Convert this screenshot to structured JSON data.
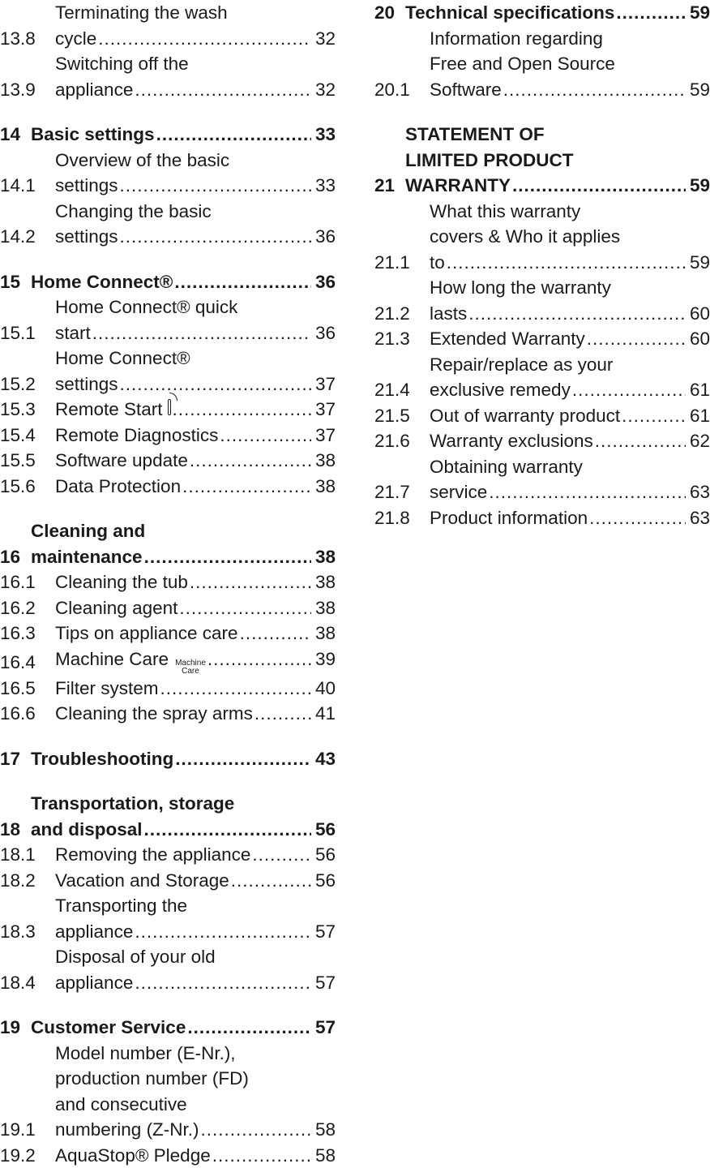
{
  "left": [
    {
      "type": "sub",
      "num": "13.8",
      "lines": [
        "Terminating the wash",
        "cycle"
      ],
      "page": "32"
    },
    {
      "type": "sub",
      "num": "13.9",
      "lines": [
        "Switching off the",
        "appliance"
      ],
      "page": "32"
    },
    {
      "type": "chapter",
      "num": "14",
      "lines": [
        "Basic settings"
      ],
      "page": "33"
    },
    {
      "type": "sub",
      "num": "14.1",
      "lines": [
        "Overview of the basic",
        "settings"
      ],
      "page": "33"
    },
    {
      "type": "sub",
      "num": "14.2",
      "lines": [
        "Changing the basic",
        "settings"
      ],
      "page": "36"
    },
    {
      "type": "chapter",
      "num": "15",
      "lines": [
        "Home Connect®"
      ],
      "page": "36"
    },
    {
      "type": "sub",
      "num": "15.1",
      "lines": [
        "Home Connect® quick",
        "start"
      ],
      "page": "36"
    },
    {
      "type": "sub",
      "num": "15.2",
      "lines": [
        "Home Connect®",
        "settings"
      ],
      "page": "37"
    },
    {
      "type": "sub",
      "num": "15.3",
      "lines": [
        "Remote Start"
      ],
      "page": "37",
      "icon": "remote-start-icon"
    },
    {
      "type": "sub",
      "num": "15.4",
      "lines": [
        "Remote Diagnostics"
      ],
      "page": "37"
    },
    {
      "type": "sub",
      "num": "15.5",
      "lines": [
        "Software update"
      ],
      "page": "38"
    },
    {
      "type": "sub",
      "num": "15.6",
      "lines": [
        "Data Protection"
      ],
      "page": "38"
    },
    {
      "type": "chapter",
      "num": "16",
      "lines": [
        "Cleaning and",
        "maintenance"
      ],
      "page": "38"
    },
    {
      "type": "sub",
      "num": "16.1",
      "lines": [
        "Cleaning the tub"
      ],
      "page": "38"
    },
    {
      "type": "sub",
      "num": "16.2",
      "lines": [
        "Cleaning agent"
      ],
      "page": "38"
    },
    {
      "type": "sub",
      "num": "16.3",
      "lines": [
        "Tips on appliance care"
      ],
      "page": "38"
    },
    {
      "type": "sub",
      "num": "16.4",
      "lines": [
        "Machine Care"
      ],
      "page": "39",
      "icon": "machine-care-icon"
    },
    {
      "type": "sub",
      "num": "16.5",
      "lines": [
        "Filter system"
      ],
      "page": "40"
    },
    {
      "type": "sub",
      "num": "16.6",
      "lines": [
        "Cleaning the spray arms"
      ],
      "page": "41"
    },
    {
      "type": "chapter",
      "num": "17",
      "lines": [
        "Troubleshooting"
      ],
      "page": "43"
    },
    {
      "type": "chapter",
      "num": "18",
      "lines": [
        "Transportation, storage",
        "and disposal"
      ],
      "page": "56"
    },
    {
      "type": "sub",
      "num": "18.1",
      "lines": [
        "Removing the appliance"
      ],
      "page": "56"
    },
    {
      "type": "sub",
      "num": "18.2",
      "lines": [
        "Vacation and Storage"
      ],
      "page": "56"
    },
    {
      "type": "sub",
      "num": "18.3",
      "lines": [
        "Transporting the",
        "appliance"
      ],
      "page": "57"
    },
    {
      "type": "sub",
      "num": "18.4",
      "lines": [
        "Disposal of your old",
        "appliance"
      ],
      "page": "57"
    },
    {
      "type": "chapter",
      "num": "19",
      "lines": [
        "Customer Service"
      ],
      "page": "57"
    },
    {
      "type": "sub",
      "num": "19.1",
      "lines": [
        "Model number (E-Nr.),",
        "production number (FD)",
        "and consecutive",
        "numbering (Z-Nr.)"
      ],
      "page": "58"
    },
    {
      "type": "sub",
      "num": "19.2",
      "lines": [
        "AquaStop® Pledge"
      ],
      "page": "58"
    }
  ],
  "right": [
    {
      "type": "chapter",
      "num": "20",
      "lines": [
        "Technical specifications"
      ],
      "page": "59"
    },
    {
      "type": "sub",
      "num": "20.1",
      "lines": [
        "Information regarding",
        "Free and Open Source",
        "Software"
      ],
      "page": "59"
    },
    {
      "type": "chapter",
      "num": "21",
      "lines": [
        "STATEMENT OF",
        "LIMITED PRODUCT",
        "WARRANTY"
      ],
      "page": "59"
    },
    {
      "type": "sub",
      "num": "21.1",
      "lines": [
        "What this warranty",
        "covers & Who it applies",
        "to"
      ],
      "page": "59"
    },
    {
      "type": "sub",
      "num": "21.2",
      "lines": [
        "How long the warranty",
        "lasts"
      ],
      "page": "60"
    },
    {
      "type": "sub",
      "num": "21.3",
      "lines": [
        "Extended Warranty"
      ],
      "page": "60"
    },
    {
      "type": "sub",
      "num": "21.4",
      "lines": [
        "Repair/replace as your",
        "exclusive remedy"
      ],
      "page": "61"
    },
    {
      "type": "sub",
      "num": "21.5",
      "lines": [
        "Out of warranty product"
      ],
      "page": "61"
    },
    {
      "type": "sub",
      "num": "21.6",
      "lines": [
        "Warranty exclusions"
      ],
      "page": "62"
    },
    {
      "type": "sub",
      "num": "21.7",
      "lines": [
        "Obtaining warranty",
        "service"
      ],
      "page": "63"
    },
    {
      "type": "sub",
      "num": "21.8",
      "lines": [
        "Product information"
      ],
      "page": "63"
    }
  ],
  "icons": {
    "machine_care_top": "Machine",
    "machine_care_bottom": "Care"
  }
}
